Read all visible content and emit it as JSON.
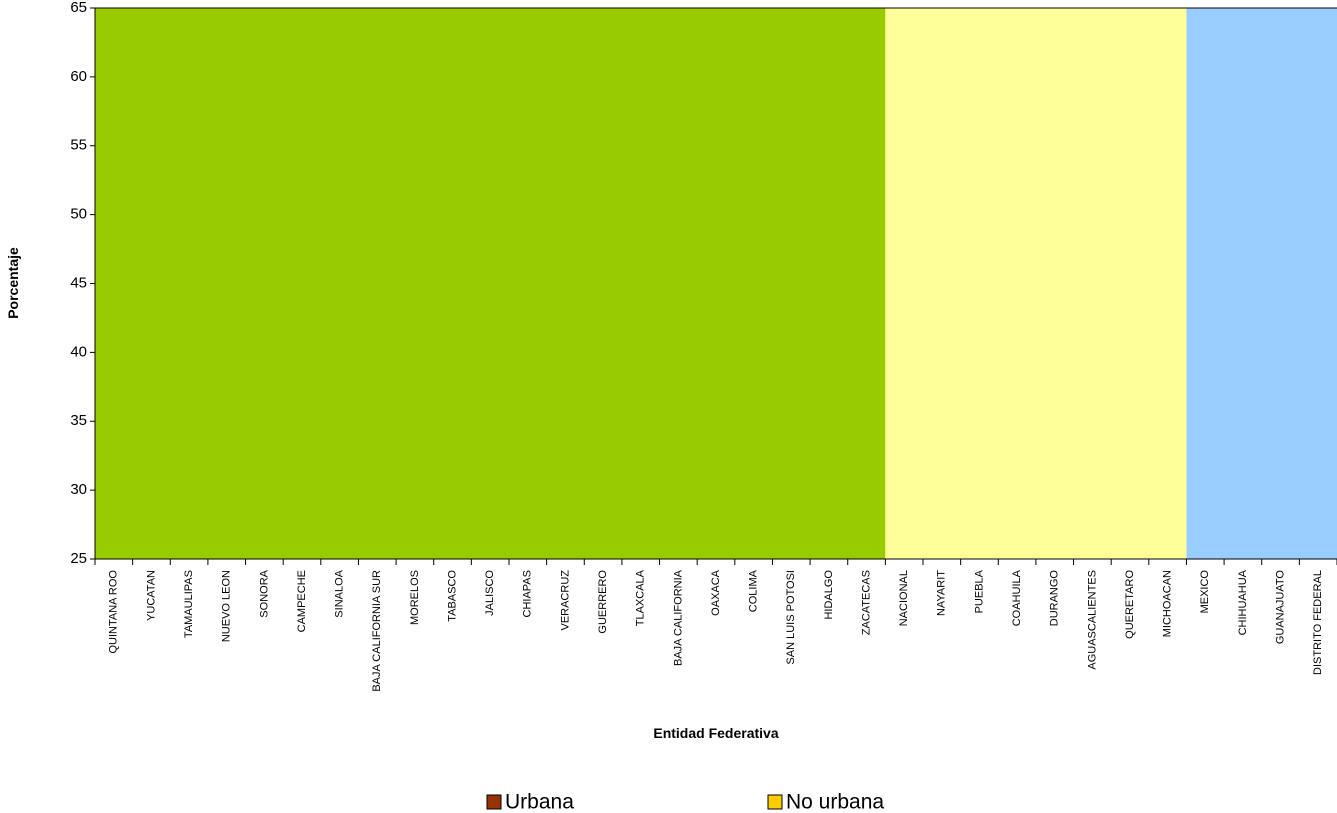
{
  "chart_data": {
    "type": "bar",
    "xlabel": "Entidad Federativa",
    "ylabel": "Porcentaje",
    "categories": [
      "QUINTANA ROO",
      "YUCATAN",
      "TAMAULIPAS",
      "NUEVO LEON",
      "SONORA",
      "CAMPECHE",
      "SINALOA",
      "BAJA CALIFORNIA SUR",
      "MORELOS",
      "TABASCO",
      "JALISCO",
      "CHIAPAS",
      "VERACRUZ",
      "GUERRERO",
      "TLAXCALA",
      "BAJA CALIFORNIA",
      "OAXACA",
      "COLIMA",
      "SAN LUIS POTOSI",
      "HIDALGO",
      "ZACATECAS",
      "NACIONAL",
      "NAYARIT",
      "PUEBLA",
      "COAHUILA",
      "DURANGO",
      "AGUASCALIENTES",
      "QUERETARO",
      "MICHOACAN",
      "MEXICO",
      "CHIHUAHUA",
      "GUANAJUATO",
      "DISTRITO FEDERAL"
    ],
    "series": [
      {
        "name": "Urbana",
        "color": "#993300",
        "values": [
          null,
          null,
          null,
          null,
          null,
          null,
          null,
          null,
          null,
          null,
          null,
          null,
          null,
          null,
          null,
          null,
          null,
          null,
          null,
          null,
          null,
          null,
          null,
          null,
          null,
          null,
          null,
          null,
          null,
          null,
          null,
          null,
          null
        ]
      },
      {
        "name": "No urbana",
        "color": "#ffcc00",
        "values": [
          null,
          null,
          null,
          null,
          null,
          null,
          null,
          null,
          null,
          null,
          null,
          null,
          null,
          null,
          null,
          null,
          null,
          null,
          null,
          null,
          null,
          null,
          null,
          null,
          null,
          null,
          null,
          null,
          null,
          null,
          null,
          null,
          null
        ]
      }
    ],
    "bands": [
      {
        "from": "QUINTANA ROO",
        "to": "ZACATECAS",
        "color": "#99cc00"
      },
      {
        "from": "NACIONAL",
        "to": "MICHOACAN",
        "color": "#ffff99"
      },
      {
        "from": "MEXICO",
        "to": "DISTRITO FEDERAL",
        "color": "#99ccff"
      }
    ],
    "ylim": [
      25,
      65
    ],
    "yticks": [
      25,
      30,
      35,
      40,
      45,
      50,
      55,
      60,
      65
    ]
  }
}
